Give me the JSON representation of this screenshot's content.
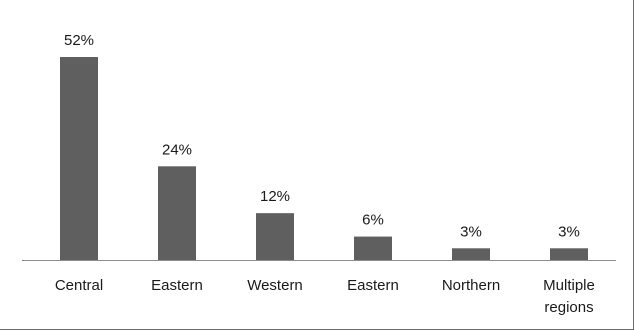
{
  "chart_data": {
    "type": "bar",
    "title": "",
    "xlabel": "",
    "ylabel": "",
    "categories": [
      [
        "Central"
      ],
      [
        "Eastern"
      ],
      [
        "Western"
      ],
      [
        "Eastern"
      ],
      [
        "Northern"
      ],
      [
        "Multiple",
        "regions"
      ]
    ],
    "values": [
      52,
      24,
      12,
      6,
      3,
      3
    ],
    "data_labels": [
      "52%",
      "24%",
      "12%",
      "6%",
      "3%",
      "3%"
    ],
    "unit": "%",
    "ylim": [
      0,
      52
    ],
    "grid": false,
    "legend": "none",
    "bar_color": "#5f5f5f",
    "axis_color": "#8c8c8c",
    "text_color": "#1a1a1a"
  }
}
